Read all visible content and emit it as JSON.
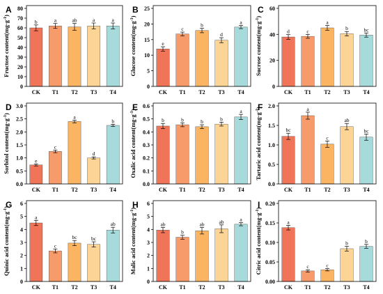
{
  "colors": [
    "#f07458",
    "#f79b6b",
    "#fbb562",
    "#fcd596",
    "#a7dadb"
  ],
  "chart_data": [
    {
      "panel": "A",
      "type": "bar",
      "ylabel_main": "Fructose content(mg·g",
      "ylabel_sup": "-1",
      "ylabel_end": ")",
      "categories": [
        "CK",
        "T1",
        "T2",
        "T3",
        "T4"
      ],
      "values": [
        60,
        62,
        61,
        62,
        62
      ],
      "errors": [
        3,
        2.5,
        3.5,
        3,
        3
      ],
      "letters": [
        "b",
        "a",
        "ab",
        "a",
        "a"
      ],
      "ylim": [
        0,
        80
      ],
      "ticks": [
        "0",
        "10",
        "20",
        "30",
        "40",
        "50",
        "60",
        "70",
        "80"
      ]
    },
    {
      "panel": "B",
      "type": "bar",
      "ylabel_main": "Glucose content(mg·g",
      "ylabel_sup": "-1",
      "ylabel_end": ")",
      "categories": [
        "CK",
        "T1",
        "T2",
        "T3",
        "T4"
      ],
      "values": [
        12,
        16.8,
        17.9,
        14.8,
        19
      ],
      "errors": [
        0.7,
        0.6,
        0.7,
        0.8,
        0.5
      ],
      "letters": [
        "e",
        "c",
        "b",
        "d",
        "a"
      ],
      "ylim": [
        0,
        25
      ],
      "ticks": [
        "0",
        "5",
        "10",
        "15",
        "20",
        "25"
      ]
    },
    {
      "panel": "C",
      "type": "bar",
      "ylabel_main": "Sucrose content(mg·g",
      "ylabel_sup": "-1",
      "ylabel_end": ")",
      "categories": [
        "CK",
        "T1",
        "T2",
        "T3",
        "T4"
      ],
      "values": [
        38,
        38.5,
        45,
        40.5,
        39.5
      ],
      "errors": [
        1.8,
        1.5,
        1.8,
        1.7,
        1.6
      ],
      "letters": [
        "d",
        "c",
        "a",
        "b",
        "bc"
      ],
      "ylim": [
        0,
        60
      ],
      "ticks": [
        "0",
        "20",
        "40",
        "60"
      ]
    },
    {
      "panel": "D",
      "type": "bar",
      "ylabel_main": "Sorbitol content(mg·g",
      "ylabel_sup": "-1",
      "ylabel_end": ")",
      "categories": [
        "CK",
        "T1",
        "T2",
        "T3",
        "T4"
      ],
      "values": [
        0.73,
        1.25,
        2.4,
        1.0,
        2.25
      ],
      "errors": [
        0.04,
        0.05,
        0.05,
        0.04,
        0.04
      ],
      "letters": [
        "e",
        "c",
        "a",
        "d",
        "b"
      ],
      "ylim": [
        0,
        3.0
      ],
      "ticks": [
        "0.0",
        "0.5",
        "1.0",
        "1.5",
        "2.0",
        "2.5",
        "3.0"
      ]
    },
    {
      "panel": "E",
      "type": "bar",
      "ylabel_main": "Oxalic acid content(mg·g",
      "ylabel_sup": "-1",
      "ylabel_end": ")",
      "categories": [
        "CK",
        "T1",
        "T2",
        "T3",
        "T4"
      ],
      "values": [
        0.445,
        0.455,
        0.44,
        0.46,
        0.515
      ],
      "errors": [
        0.02,
        0.015,
        0.015,
        0.015,
        0.02
      ],
      "letters": [
        "b",
        "b",
        "b",
        "b",
        "a"
      ],
      "ylim": [
        0,
        0.6
      ],
      "ticks": [
        "0.0",
        "0.1",
        "0.2",
        "0.3",
        "0.4",
        "0.5",
        "0.6"
      ]
    },
    {
      "panel": "F",
      "type": "bar",
      "ylabel_main": "Tartaric acid content(mg·g",
      "ylabel_sup": "-1",
      "ylabel_end": ")",
      "categories": [
        "CK",
        "T1",
        "T2",
        "T3",
        "T4"
      ],
      "values": [
        1.22,
        1.75,
        1.02,
        1.47,
        1.2
      ],
      "errors": [
        0.08,
        0.09,
        0.08,
        0.08,
        0.08
      ],
      "letters": [
        "bc",
        "a",
        "c",
        "ab",
        "bc"
      ],
      "ylim": [
        0,
        2.0
      ],
      "ticks": [
        "0.0",
        "0.5",
        "1.0",
        "1.5",
        "2.0"
      ]
    },
    {
      "panel": "G",
      "type": "bar",
      "ylabel_main": "Quinic acid content(mg·g",
      "ylabel_sup": "-1",
      "ylabel_end": ")",
      "categories": [
        "CK",
        "T1",
        "T2",
        "T3",
        "T4"
      ],
      "values": [
        4.5,
        2.35,
        2.95,
        2.85,
        3.95
      ],
      "errors": [
        0.2,
        0.15,
        0.2,
        0.2,
        0.22
      ],
      "letters": [
        "a",
        "c",
        "bc",
        "bc",
        "ab"
      ],
      "ylim": [
        0,
        6
      ],
      "ticks": [
        "0",
        "1",
        "2",
        "3",
        "4",
        "5",
        "6"
      ]
    },
    {
      "panel": "H",
      "type": "bar",
      "ylabel_main": "Malic acid content(mg·g",
      "ylabel_sup": "-1",
      "ylabel_end": ")",
      "categories": [
        "CK",
        "T1",
        "T2",
        "T3",
        "T4"
      ],
      "values": [
        3.95,
        3.4,
        3.9,
        4.05,
        4.4
      ],
      "errors": [
        0.2,
        0.15,
        0.25,
        0.3,
        0.12
      ],
      "letters": [
        "ab",
        "b",
        "ab",
        "ab",
        "a"
      ],
      "ylim": [
        0,
        6
      ],
      "ticks": [
        "0",
        "1",
        "2",
        "3",
        "4",
        "5",
        "6"
      ]
    },
    {
      "panel": "I",
      "type": "bar",
      "ylabel_main": "Citric acid content(mg·g",
      "ylabel_sup": "-1",
      "ylabel_end": ")",
      "categories": [
        "CK",
        "T1",
        "T2",
        "T3",
        "T4"
      ],
      "values": [
        0.138,
        0.027,
        0.03,
        0.084,
        0.09
      ],
      "errors": [
        0.006,
        0.003,
        0.003,
        0.006,
        0.005
      ],
      "letters": [
        "a",
        "c",
        "c",
        "b",
        "b"
      ],
      "ylim": [
        0,
        0.2
      ],
      "ticks": [
        "0.00",
        "0.05",
        "0.10",
        "0.15",
        "0.20"
      ]
    }
  ]
}
